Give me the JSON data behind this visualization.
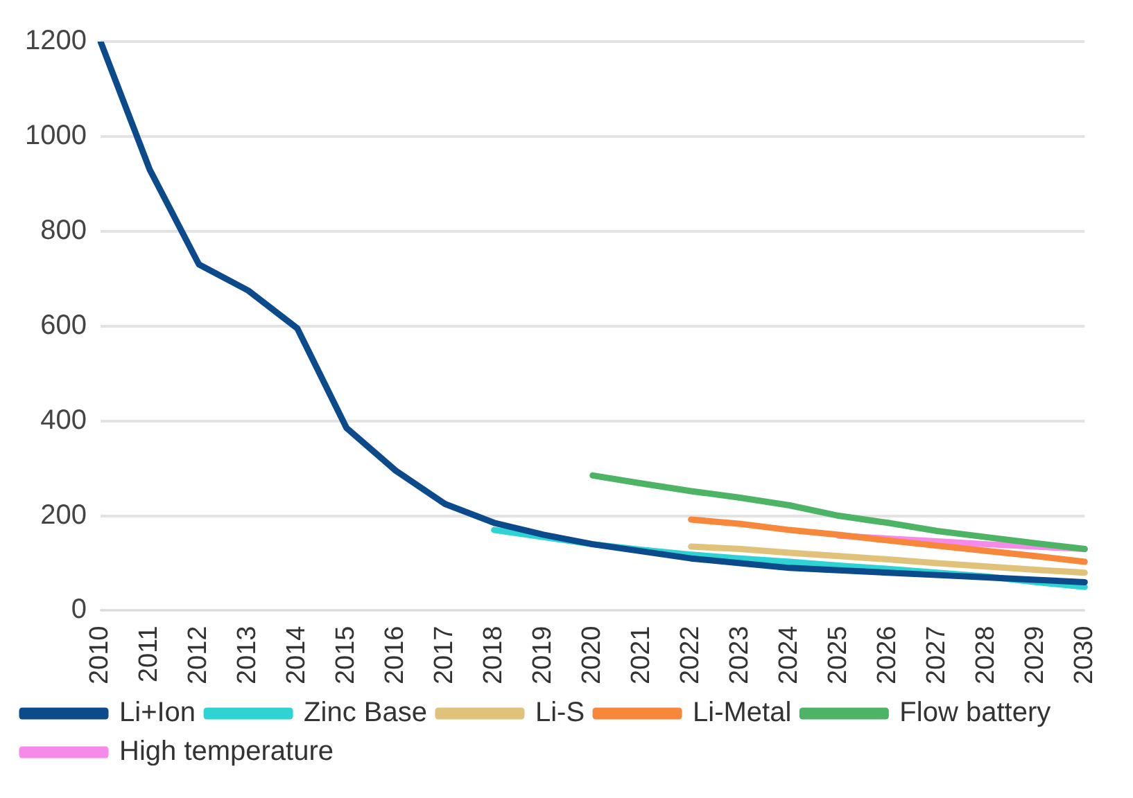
{
  "chart_data": {
    "type": "line",
    "categories": [
      "2010",
      "2011",
      "2012",
      "2013",
      "2014",
      "2015",
      "2016",
      "2017",
      "2018",
      "2019",
      "2020",
      "2021",
      "2022",
      "2023",
      "2024",
      "2025",
      "2026",
      "2027",
      "2028",
      "2029",
      "2030"
    ],
    "series": [
      {
        "name": "Li+Ion",
        "color": "#0b4a8b",
        "values": [
          1200,
          930,
          730,
          675,
          595,
          385,
          295,
          225,
          185,
          160,
          140,
          125,
          110,
          100,
          90,
          85,
          80,
          75,
          70,
          65,
          60
        ]
      },
      {
        "name": "Zinc Base",
        "color": "#2ed3d3",
        "values": [
          null,
          null,
          null,
          null,
          null,
          null,
          null,
          null,
          170,
          155,
          140,
          128,
          118,
          110,
          103,
          95,
          88,
          80,
          72,
          60,
          50
        ]
      },
      {
        "name": "Li-S",
        "color": "#e0c27a",
        "values": [
          null,
          null,
          null,
          null,
          null,
          null,
          null,
          null,
          null,
          null,
          null,
          null,
          135,
          130,
          122,
          115,
          108,
          100,
          93,
          86,
          80
        ]
      },
      {
        "name": "Li-Metal",
        "color": "#f7873a",
        "values": [
          null,
          null,
          null,
          null,
          null,
          null,
          null,
          null,
          null,
          null,
          null,
          null,
          192,
          183,
          170,
          160,
          148,
          137,
          126,
          115,
          103
        ]
      },
      {
        "name": "Flow battery",
        "color": "#4cb464",
        "values": [
          null,
          null,
          null,
          null,
          null,
          null,
          null,
          null,
          null,
          null,
          285,
          268,
          252,
          238,
          222,
          200,
          185,
          168,
          155,
          142,
          130
        ]
      },
      {
        "name": "High temperature",
        "color": "#f68ae8",
        "values": [
          null,
          null,
          null,
          null,
          null,
          null,
          null,
          null,
          null,
          null,
          null,
          null,
          null,
          null,
          null,
          158,
          152,
          146,
          140,
          135,
          130
        ]
      }
    ],
    "ylim": [
      0,
      1200
    ],
    "yticks": [
      0,
      200,
      400,
      600,
      800,
      1000,
      1200
    ],
    "grid": "y",
    "legend": "bottom",
    "marker": "none",
    "line_style": "solid"
  }
}
